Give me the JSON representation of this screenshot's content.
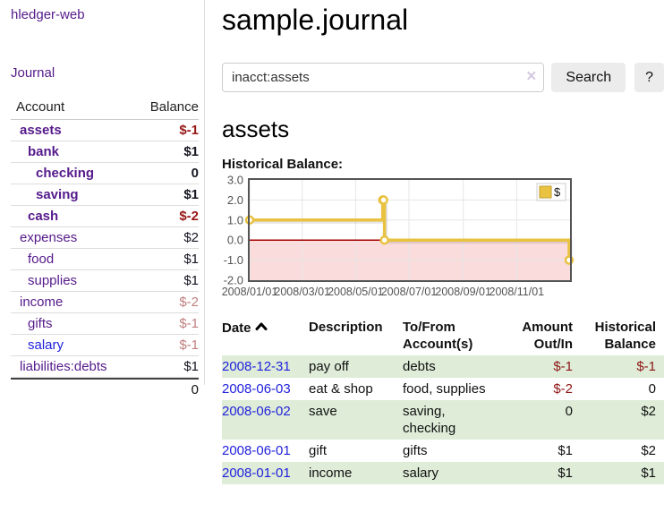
{
  "app": {
    "title": "hledger-web"
  },
  "sidebar": {
    "journal_link": "Journal",
    "table": {
      "account_header": "Account",
      "balance_header": "Balance",
      "rows": [
        {
          "label": "assets",
          "balance": "$-1",
          "indent": 1,
          "bold": true,
          "neg": "strong"
        },
        {
          "label": "bank",
          "balance": "$1",
          "indent": 2,
          "bold": true
        },
        {
          "label": "checking",
          "balance": "0",
          "indent": 3,
          "bold": true
        },
        {
          "label": "saving",
          "balance": "$1",
          "indent": 3,
          "bold": true
        },
        {
          "label": "cash",
          "balance": "$-2",
          "indent": 2,
          "bold": true,
          "neg": "strong"
        },
        {
          "label": "expenses",
          "balance": "$2",
          "indent": 1
        },
        {
          "label": "food",
          "balance": "$1",
          "indent": 2
        },
        {
          "label": "supplies",
          "balance": "$1",
          "indent": 2
        },
        {
          "label": "income",
          "balance": "$-2",
          "indent": 1,
          "neg": "muted"
        },
        {
          "label": "gifts",
          "balance": "$-1",
          "indent": 2,
          "neg": "muted"
        },
        {
          "label": "salary",
          "balance": "$-1",
          "indent": 2,
          "neg": "muted",
          "link_color": "blue"
        },
        {
          "label": "liabilities:debts",
          "balance": "$1",
          "indent": 1
        }
      ],
      "total": "0"
    }
  },
  "main": {
    "title": "sample.journal",
    "search": {
      "value": "inacct:assets",
      "clear_icon": "×",
      "button_label": "Search",
      "help_label": "?"
    },
    "section_title": "assets",
    "chart_label": "Historical Balance:"
  },
  "chart_data": {
    "type": "line",
    "style": "step",
    "title": "Historical Balance of assets",
    "series": [
      {
        "name": "$",
        "color": "#e8c240",
        "points": [
          [
            "2008-01-01",
            1
          ],
          [
            "2008-06-01",
            2
          ],
          [
            "2008-06-02",
            2
          ],
          [
            "2008-06-03",
            0
          ],
          [
            "2008-12-31",
            -1
          ]
        ]
      }
    ],
    "xlim": [
      "2008-01-01",
      "2009-01-01"
    ],
    "ylim": [
      -2,
      3
    ],
    "x_ticks": [
      "2008/01/01",
      "2008/03/01",
      "2008/05/01",
      "2008/07/01",
      "2008/09/01",
      "2008/11/01"
    ],
    "y_ticks": [
      3.0,
      2.0,
      1.0,
      0.0,
      -1.0,
      -2.0
    ],
    "legend": [
      "$"
    ],
    "legend_position": "top-right",
    "grid": true,
    "zero_line_color": "#a40000",
    "negative_region_color": "#fbdcdc",
    "plot_border_color": "#545454",
    "axis_text_color": "#545454"
  },
  "transactions": {
    "headers": [
      {
        "label": "Date",
        "sort": "ascending"
      },
      {
        "label": "Description"
      },
      {
        "label": "To/From Account(s)"
      },
      {
        "label": "Amount Out/In"
      },
      {
        "label": "Historical Balance"
      }
    ],
    "rows": [
      {
        "date": "2008-12-31",
        "description": "pay off",
        "accounts": "debts",
        "amount": "$-1",
        "amount_negative": true,
        "balance": "$-1",
        "balance_negative": true
      },
      {
        "date": "2008-06-03",
        "description": "eat & shop",
        "accounts": "food, supplies",
        "amount": "$-2",
        "amount_negative": true,
        "balance": "0",
        "balance_negative": false
      },
      {
        "date": "2008-06-02",
        "description": "save",
        "accounts": "saving, checking",
        "amount": "0",
        "amount_negative": false,
        "balance": "$2",
        "balance_negative": false
      },
      {
        "date": "2008-06-01",
        "description": "gift",
        "accounts": "gifts",
        "amount": "$1",
        "amount_negative": false,
        "balance": "$2",
        "balance_negative": false
      },
      {
        "date": "2008-01-01",
        "description": "income",
        "accounts": "salary",
        "amount": "$1",
        "amount_negative": false,
        "balance": "$1",
        "balance_negative": false
      }
    ]
  }
}
